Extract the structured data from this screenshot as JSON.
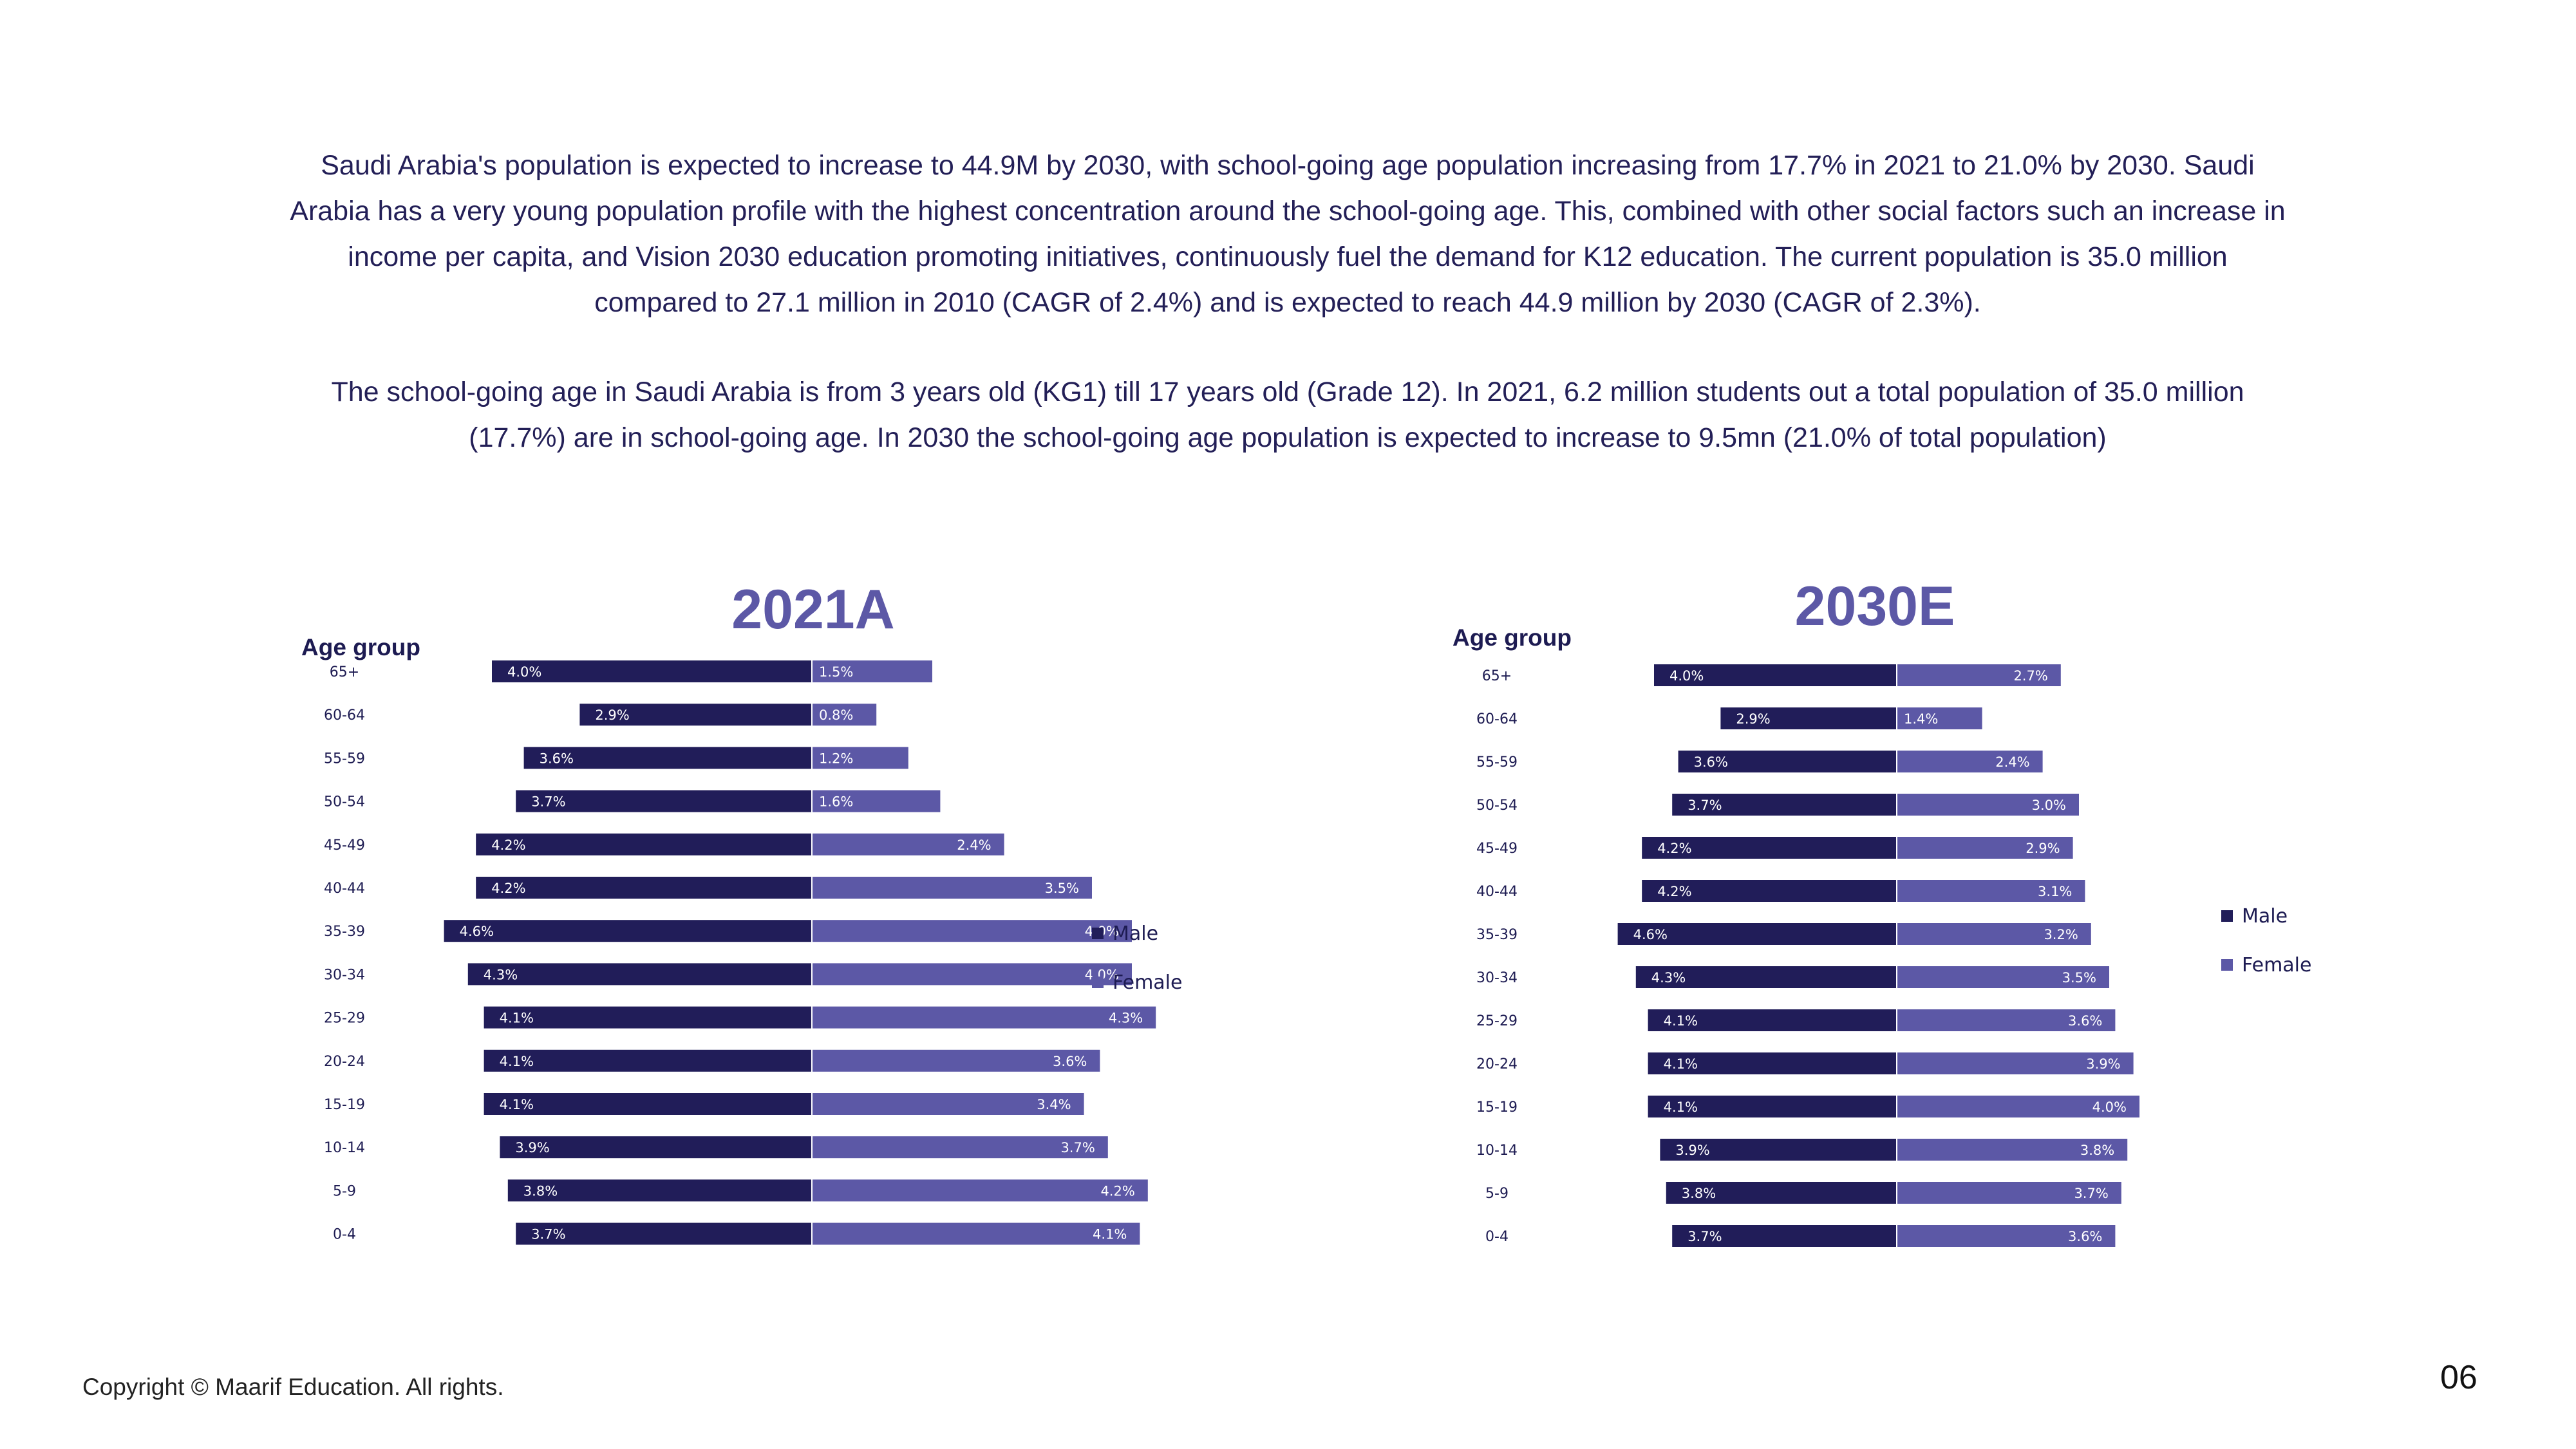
{
  "intro": {
    "paragraph1": "Saudi Arabia's population is expected to increase to 44.9M by 2030, with school-going age population increasing from 17.7% in 2021 to 21.0% by 2030. Saudi Arabia has a very young population profile with the highest concentration around the school-going age. This, combined with other social factors such an increase in income per capita, and Vision 2030 education promoting initiatives, continuously fuel the demand for K12 education. The current population is 35.0 million compared to 27.1 million in 2010 (CAGR of 2.4%) and is expected to reach 44.9 million by 2030 (CAGR of 2.3%).",
    "paragraph2": "The school-going age in Saudi Arabia is from 3 years old (KG1) till 17 years old  (Grade 12). In 2021, 6.2 million students out a total population of 35.0 million (17.7%) are in school-going age. In 2030 the school-going age population is expected to increase to 9.5mn (21.0% of total population)"
  },
  "colors": {
    "male": "#211d59",
    "female": "#5c58a6",
    "title": "#5c58a6"
  },
  "chart_data": [
    {
      "type": "bar",
      "orientation": "horizontal-pyramid",
      "title": "2021A",
      "ylabel": "Age group",
      "categories": [
        "65+",
        "60-64",
        "55-59",
        "50-54",
        "45-49",
        "40-44",
        "35-39",
        "30-34",
        "25-29",
        "20-24",
        "15-19",
        "10-14",
        "5-9",
        "0-4"
      ],
      "series": [
        {
          "name": "Male",
          "values": [
            4.0,
            2.9,
            3.6,
            3.7,
            4.2,
            4.2,
            4.6,
            4.3,
            4.1,
            4.1,
            4.1,
            3.9,
            3.8,
            3.7
          ],
          "labels": [
            "4.0%",
            "2.9%",
            "3.6%",
            "3.7%",
            "4.2%",
            "4.2%",
            "4.6%",
            "4.3%",
            "4.1%",
            "4.1%",
            "4.1%",
            "3.9%",
            "3.8%",
            "3.7%"
          ]
        },
        {
          "name": "Female",
          "values": [
            1.5,
            0.8,
            1.2,
            1.6,
            2.4,
            3.5,
            4.0,
            4.0,
            4.3,
            3.6,
            3.4,
            3.7,
            4.2,
            4.1
          ],
          "labels": [
            "1.5%",
            "0.8%",
            "1.2%",
            "1.6%",
            "2.4%",
            "3.5%",
            "4.0%",
            "4.0%",
            "4.3%",
            "3.6%",
            "3.4%",
            "3.7%",
            "4.2%",
            "4.1%"
          ]
        }
      ],
      "legend": "right",
      "grid": false
    },
    {
      "type": "bar",
      "orientation": "horizontal-pyramid",
      "title": "2030E",
      "ylabel": "Age group",
      "categories": [
        "65+",
        "60-64",
        "55-59",
        "50-54",
        "45-49",
        "40-44",
        "35-39",
        "30-34",
        "25-29",
        "20-24",
        "15-19",
        "10-14",
        "5-9",
        "0-4"
      ],
      "series": [
        {
          "name": "Male",
          "values": [
            4.0,
            2.9,
            3.6,
            3.7,
            4.2,
            4.2,
            4.6,
            4.3,
            4.1,
            4.1,
            4.1,
            3.9,
            3.8,
            3.7
          ],
          "labels": [
            "4.0%",
            "2.9%",
            "3.6%",
            "3.7%",
            "4.2%",
            "4.2%",
            "4.6%",
            "4.3%",
            "4.1%",
            "4.1%",
            "4.1%",
            "3.9%",
            "3.8%",
            "3.7%"
          ]
        },
        {
          "name": "Female",
          "values": [
            2.7,
            1.4,
            2.4,
            3.0,
            2.9,
            3.1,
            3.2,
            3.5,
            3.6,
            3.9,
            4.0,
            3.8,
            3.7,
            3.6
          ],
          "labels": [
            "2.7%",
            "1.4%",
            "2.4%",
            "3.0%",
            "2.9%",
            "3.1%",
            "3.2%",
            "3.5%",
            "3.6%",
            "3.9%",
            "4.0%",
            "3.8%",
            "3.7%",
            "3.6%"
          ]
        }
      ],
      "legend": "right",
      "grid": false
    }
  ],
  "legend": {
    "male": "Male",
    "female": "Female"
  },
  "footer": {
    "copyright": "Copyright © Maarif Education. All rights.",
    "page_number": "06"
  }
}
